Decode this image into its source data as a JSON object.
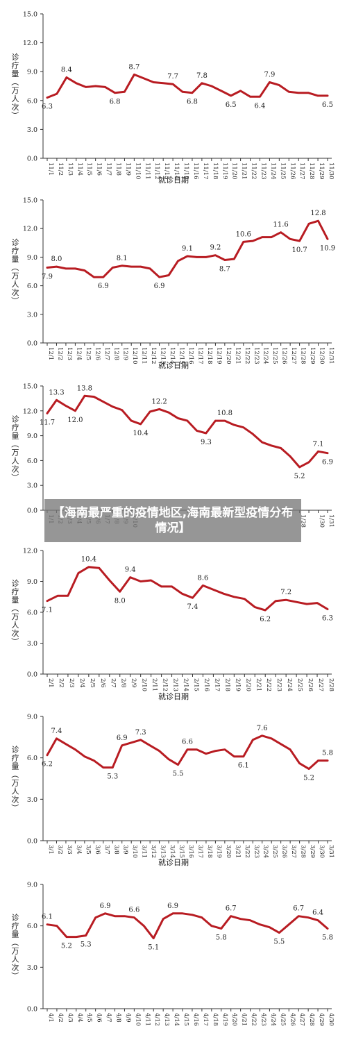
{
  "banner": {
    "text": "【海南最严重的疫情地区,海南最新型疫情分布情况】"
  },
  "colors": {
    "line": "#b81c22",
    "axis": "#333333",
    "text": "#222222"
  },
  "chart_data": [
    {
      "type": "line",
      "month": "November",
      "ylabel": "诊疗量（万人次）",
      "xlabel": "就诊日期",
      "yticks": [
        "0.0",
        "3.0",
        "6.0",
        "9.0",
        "12.0",
        "15.0"
      ],
      "ylim": [
        0,
        15
      ],
      "categories": [
        "11/1",
        "11/2",
        "11/3",
        "11/4",
        "11/5",
        "11/6",
        "11/7",
        "11/8",
        "11/9",
        "11/10",
        "11/11",
        "11/12",
        "11/13",
        "11/14",
        "11/15",
        "11/16",
        "11/17",
        "11/18",
        "11/19",
        "11/20",
        "11/21",
        "11/22",
        "11/23",
        "11/24",
        "11/25",
        "11/26",
        "11/27",
        "11/28",
        "11/29",
        "11/30"
      ],
      "values": [
        6.3,
        6.7,
        8.4,
        7.8,
        7.4,
        7.5,
        7.4,
        6.8,
        6.9,
        8.7,
        8.3,
        7.9,
        7.8,
        7.7,
        6.9,
        6.8,
        7.8,
        7.5,
        7.0,
        6.5,
        7.0,
        6.4,
        6.4,
        7.9,
        7.6,
        6.9,
        6.8,
        6.8,
        6.5,
        6.5
      ],
      "annotations": [
        {
          "index": 0,
          "text": "6.3",
          "pos": "below"
        },
        {
          "index": 2,
          "text": "8.4",
          "pos": "above"
        },
        {
          "index": 7,
          "text": "6.8",
          "pos": "below"
        },
        {
          "index": 9,
          "text": "8.7",
          "pos": "above"
        },
        {
          "index": 13,
          "text": "7.7",
          "pos": "above"
        },
        {
          "index": 15,
          "text": "6.8",
          "pos": "below"
        },
        {
          "index": 16,
          "text": "7.8",
          "pos": "above"
        },
        {
          "index": 19,
          "text": "6.5",
          "pos": "below"
        },
        {
          "index": 22,
          "text": "6.4",
          "pos": "below"
        },
        {
          "index": 23,
          "text": "7.9",
          "pos": "above"
        },
        {
          "index": 29,
          "text": "6.5",
          "pos": "below"
        }
      ]
    },
    {
      "type": "line",
      "month": "December",
      "ylabel": "诊疗量（万人次）",
      "xlabel": "就诊日期",
      "yticks": [
        "0.0",
        "3.0",
        "6.0",
        "9.0",
        "12.0",
        "15.0"
      ],
      "ylim": [
        0,
        15
      ],
      "categories": [
        "12/1",
        "12/2",
        "12/3",
        "12/4",
        "12/5",
        "12/6",
        "12/7",
        "12/8",
        "12/9",
        "12/10",
        "12/11",
        "12/12",
        "12/13",
        "12/14",
        "12/15",
        "12/16",
        "12/17",
        "12/18",
        "12/19",
        "12/20",
        "12/21",
        "12/22",
        "12/23",
        "12/24",
        "12/25",
        "12/26",
        "12/27",
        "12/28",
        "12/29",
        "12/30",
        "12/31"
      ],
      "values": [
        7.9,
        8.0,
        7.8,
        7.8,
        7.6,
        6.9,
        6.9,
        7.9,
        8.1,
        8.0,
        8.0,
        7.8,
        6.9,
        7.1,
        8.6,
        9.1,
        9.0,
        9.0,
        9.2,
        8.7,
        8.8,
        10.6,
        10.7,
        11.1,
        11.1,
        11.6,
        10.9,
        10.7,
        12.5,
        12.8,
        10.9
      ],
      "annotations": [
        {
          "index": 0,
          "text": "7.9",
          "pos": "below"
        },
        {
          "index": 1,
          "text": "8.0",
          "pos": "above"
        },
        {
          "index": 6,
          "text": "6.9",
          "pos": "below"
        },
        {
          "index": 8,
          "text": "8.1",
          "pos": "above"
        },
        {
          "index": 12,
          "text": "6.9",
          "pos": "below"
        },
        {
          "index": 15,
          "text": "9.1",
          "pos": "above"
        },
        {
          "index": 18,
          "text": "9.2",
          "pos": "above"
        },
        {
          "index": 19,
          "text": "8.7",
          "pos": "below"
        },
        {
          "index": 21,
          "text": "10.6",
          "pos": "above"
        },
        {
          "index": 25,
          "text": "11.6",
          "pos": "above"
        },
        {
          "index": 27,
          "text": "10.7",
          "pos": "below"
        },
        {
          "index": 29,
          "text": "12.8",
          "pos": "above"
        },
        {
          "index": 30,
          "text": "10.9",
          "pos": "below"
        }
      ]
    },
    {
      "type": "line",
      "month": "January",
      "ylabel": "诊疗量（万人次）",
      "xlabel": "",
      "yticks": [
        "0.0",
        "3.0",
        "6.0",
        "9.0",
        "12.0",
        "15.0"
      ],
      "ylim": [
        0,
        15
      ],
      "categories": [
        "1/1",
        "1/2",
        "1/3",
        "1/4",
        "1/5",
        "1/6",
        "1/7",
        "1/8",
        "1/9",
        "1/10",
        "1/11",
        "1/12",
        "1/13",
        "1/14",
        "1/15",
        "1/16",
        "1/17",
        "1/18",
        "1/19",
        "1/20",
        "1/21",
        "1/22",
        "1/23",
        "1/24",
        "1/25",
        "1/26",
        "1/27",
        "1/28",
        "1/29",
        "1/30",
        "1/31"
      ],
      "visible_tick_labels": [
        "1/1",
        "1/2",
        "1/3",
        "1/4",
        "1/5",
        "1/6",
        "1/7",
        "1/8",
        "1/9",
        "1/10",
        "1/28",
        "1/30",
        "1/31"
      ],
      "values": [
        11.7,
        13.3,
        12.6,
        12.0,
        13.8,
        13.7,
        13.1,
        12.5,
        12.1,
        10.8,
        10.4,
        11.9,
        12.2,
        11.8,
        11.1,
        10.8,
        9.6,
        9.3,
        10.8,
        10.8,
        10.3,
        10.0,
        9.2,
        8.2,
        7.8,
        7.5,
        6.5,
        5.2,
        5.8,
        7.1,
        6.9
      ],
      "annotations": [
        {
          "index": 0,
          "text": "11.7",
          "pos": "below"
        },
        {
          "index": 1,
          "text": "13.3",
          "pos": "above"
        },
        {
          "index": 3,
          "text": "12.0",
          "pos": "below"
        },
        {
          "index": 4,
          "text": "13.8",
          "pos": "above"
        },
        {
          "index": 10,
          "text": "10.4",
          "pos": "below"
        },
        {
          "index": 12,
          "text": "12.2",
          "pos": "above"
        },
        {
          "index": 17,
          "text": "9.3",
          "pos": "below"
        },
        {
          "index": 19,
          "text": "10.8",
          "pos": "above"
        },
        {
          "index": 27,
          "text": "5.2",
          "pos": "below"
        },
        {
          "index": 29,
          "text": "7.1",
          "pos": "above"
        },
        {
          "index": 30,
          "text": "6.9",
          "pos": "below"
        }
      ]
    },
    {
      "type": "line",
      "month": "February",
      "ylabel": "诊疗量（万人次）",
      "xlabel": "就诊日期",
      "yticks": [
        "0.0",
        "3.0",
        "6.0",
        "9.0",
        "12.0"
      ],
      "ylim": [
        0,
        12
      ],
      "categories": [
        "2/1",
        "2/2",
        "2/3",
        "2/4",
        "2/5",
        "2/6",
        "2/7",
        "2/8",
        "2/9",
        "2/10",
        "2/11",
        "2/12",
        "2/13",
        "2/14",
        "2/15",
        "2/16",
        "2/17",
        "2/18",
        "2/19",
        "2/20",
        "2/21",
        "2/22",
        "2/23",
        "2/24",
        "2/25",
        "2/26",
        "2/27",
        "2/28"
      ],
      "values": [
        7.1,
        7.6,
        7.6,
        9.8,
        10.4,
        10.3,
        9.1,
        8.0,
        9.4,
        9.0,
        9.1,
        8.5,
        8.5,
        7.8,
        7.4,
        8.6,
        8.2,
        7.8,
        7.5,
        7.3,
        6.5,
        6.2,
        7.1,
        7.2,
        7.0,
        6.8,
        6.9,
        6.3
      ],
      "annotations": [
        {
          "index": 0,
          "text": "7.1",
          "pos": "below"
        },
        {
          "index": 4,
          "text": "10.4",
          "pos": "above"
        },
        {
          "index": 7,
          "text": "8.0",
          "pos": "below"
        },
        {
          "index": 8,
          "text": "9.4",
          "pos": "above"
        },
        {
          "index": 14,
          "text": "7.4",
          "pos": "below"
        },
        {
          "index": 15,
          "text": "8.6",
          "pos": "above"
        },
        {
          "index": 21,
          "text": "6.2",
          "pos": "below"
        },
        {
          "index": 23,
          "text": "7.2",
          "pos": "above"
        },
        {
          "index": 27,
          "text": "6.3",
          "pos": "below"
        }
      ]
    },
    {
      "type": "line",
      "month": "March",
      "ylabel": "诊疗量（万人次）",
      "xlabel": "就诊日期",
      "yticks": [
        "0.0",
        "3.0",
        "6.0",
        "9.0"
      ],
      "ylim": [
        0,
        9
      ],
      "categories": [
        "3/1",
        "3/2",
        "3/3",
        "3/4",
        "3/5",
        "3/6",
        "3/7",
        "3/8",
        "3/9",
        "3/10",
        "3/11",
        "3/12",
        "3/13",
        "3/14",
        "3/15",
        "3/16",
        "3/17",
        "3/18",
        "3/19",
        "3/20",
        "3/21",
        "3/22",
        "3/23",
        "3/24",
        "3/25",
        "3/26",
        "3/27",
        "3/28",
        "3/29",
        "3/30",
        "3/31"
      ],
      "values": [
        6.2,
        7.4,
        7.0,
        6.6,
        6.1,
        5.8,
        5.3,
        5.3,
        6.9,
        7.1,
        7.3,
        6.9,
        6.5,
        5.9,
        5.5,
        6.6,
        6.6,
        6.3,
        6.5,
        6.6,
        6.1,
        6.1,
        7.3,
        7.6,
        7.4,
        7.0,
        6.6,
        5.6,
        5.2,
        5.8,
        5.8
      ],
      "annotations": [
        {
          "index": 0,
          "text": "6.2",
          "pos": "below"
        },
        {
          "index": 1,
          "text": "7.4",
          "pos": "above"
        },
        {
          "index": 7,
          "text": "5.3",
          "pos": "below"
        },
        {
          "index": 8,
          "text": "6.9",
          "pos": "above"
        },
        {
          "index": 10,
          "text": "7.3",
          "pos": "above"
        },
        {
          "index": 14,
          "text": "5.5",
          "pos": "below"
        },
        {
          "index": 15,
          "text": "6.6",
          "pos": "above"
        },
        {
          "index": 21,
          "text": "6.1",
          "pos": "below"
        },
        {
          "index": 23,
          "text": "7.6",
          "pos": "above"
        },
        {
          "index": 28,
          "text": "5.2",
          "pos": "below"
        },
        {
          "index": 30,
          "text": "5.8",
          "pos": "above"
        }
      ]
    },
    {
      "type": "line",
      "month": "April",
      "ylabel": "诊疗量（万人次）",
      "xlabel": "",
      "yticks": [
        "0.0",
        "3.0",
        "6.0",
        "9.0"
      ],
      "ylim": [
        0,
        9
      ],
      "categories": [
        "4/1",
        "4/2",
        "4/3",
        "4/4",
        "4/5",
        "4/6",
        "4/7",
        "4/8",
        "4/9",
        "4/10",
        "4/11",
        "4/12",
        "4/13",
        "4/14",
        "4/15",
        "4/16",
        "4/17",
        "4/18",
        "4/19",
        "4/20",
        "4/21",
        "4/22",
        "4/23",
        "4/24",
        "4/25",
        "4/26",
        "4/27",
        "4/28",
        "4/29",
        "4/30"
      ],
      "values": [
        6.1,
        6.0,
        5.2,
        5.2,
        5.3,
        6.6,
        6.9,
        6.7,
        6.7,
        6.6,
        6.0,
        5.1,
        6.5,
        6.9,
        6.9,
        6.8,
        6.6,
        6.0,
        5.8,
        6.7,
        6.5,
        6.4,
        6.1,
        5.9,
        5.5,
        6.1,
        6.7,
        6.6,
        6.4,
        5.8
      ],
      "annotations": [
        {
          "index": 0,
          "text": "6.1",
          "pos": "above"
        },
        {
          "index": 2,
          "text": "5.2",
          "pos": "below"
        },
        {
          "index": 4,
          "text": "5.3",
          "pos": "below"
        },
        {
          "index": 6,
          "text": "6.9",
          "pos": "above"
        },
        {
          "index": 9,
          "text": "6.6",
          "pos": "above"
        },
        {
          "index": 11,
          "text": "5.1",
          "pos": "below"
        },
        {
          "index": 13,
          "text": "6.9",
          "pos": "above"
        },
        {
          "index": 18,
          "text": "5.8",
          "pos": "below"
        },
        {
          "index": 19,
          "text": "6.7",
          "pos": "above"
        },
        {
          "index": 24,
          "text": "5.5",
          "pos": "below"
        },
        {
          "index": 26,
          "text": "6.7",
          "pos": "above"
        },
        {
          "index": 28,
          "text": "6.4",
          "pos": "above"
        },
        {
          "index": 29,
          "text": "5.8",
          "pos": "below"
        }
      ]
    }
  ]
}
